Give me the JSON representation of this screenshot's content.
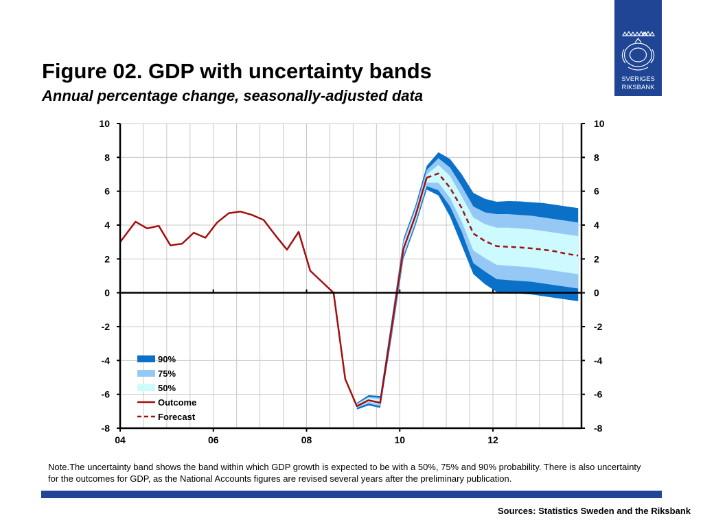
{
  "header": {
    "title": "Figure 02. GDP with uncertainty bands",
    "subtitle": "Annual percentage change, seasonally-adjusted data"
  },
  "logo": {
    "line1": "SVERIGES",
    "line2": "RIKSBANK",
    "background": "#1f4594",
    "icon": "crowned-crest-icon"
  },
  "note": "Note.The uncertainty band shows the band within which GDP growth is expected to be with a 50%, 75% and 90% probability. There is also uncertainty for the outcomes for GDP, as the National Accounts figures are revised several years after the preliminary publication.",
  "sources": "Sources: Statistics Sweden and the Riksbank",
  "chart_data": {
    "type": "area",
    "title": "Figure 02. GDP with uncertainty bands",
    "subtitle": "Annual percentage change, seasonally-adjusted data",
    "xlabel": "",
    "ylabel": "",
    "xlim": [
      2004,
      2013.9
    ],
    "ylim": [
      -8,
      10
    ],
    "x_ticks": [
      2004,
      2006,
      2008,
      2010,
      2012
    ],
    "x_tick_labels": [
      "04",
      "06",
      "08",
      "10",
      "12"
    ],
    "y_ticks": [
      -8,
      -6,
      -4,
      -2,
      0,
      2,
      4,
      6,
      8,
      10
    ],
    "y_tick_labels": [
      "-8",
      "-6",
      "-4",
      "-2",
      "0",
      "2",
      "4",
      "6",
      "8",
      "10"
    ],
    "secondary_y_axis": true,
    "grid": true,
    "legend_position": "bottom-left",
    "colors": {
      "band_90": "#0a70c8",
      "band_75": "#96c8f5",
      "band_50": "#ccfaff",
      "outcome": "#a30d0d",
      "forecast": "#a30d0d"
    },
    "series": [
      {
        "name": "Outcome",
        "style": "solid",
        "x": [
          2004.0,
          2004.33,
          2004.58,
          2004.83,
          2005.08,
          2005.33,
          2005.58,
          2005.83,
          2006.08,
          2006.33,
          2006.58,
          2006.83,
          2007.08,
          2007.33,
          2007.58,
          2007.83,
          2008.08,
          2008.33,
          2008.58,
          2008.83,
          2009.08,
          2009.33,
          2009.58,
          2009.83,
          2010.08,
          2010.33,
          2010.58
        ],
        "values": [
          3.0,
          4.2,
          3.8,
          3.95,
          2.8,
          2.9,
          3.55,
          3.25,
          4.15,
          4.7,
          4.8,
          4.6,
          4.3,
          3.4,
          2.55,
          3.6,
          1.3,
          0.65,
          0.0,
          -5.1,
          -6.7,
          -6.35,
          -6.5,
          -2.0,
          2.6,
          4.5,
          6.8
        ]
      },
      {
        "name": "Forecast",
        "style": "dashed",
        "x": [
          2010.58,
          2010.83,
          2011.08,
          2011.33,
          2011.58,
          2011.83,
          2012.08,
          2012.33,
          2012.58,
          2012.83,
          2013.08,
          2013.33,
          2013.58,
          2013.83
        ],
        "values": [
          6.8,
          7.05,
          6.2,
          5.0,
          3.5,
          3.05,
          2.75,
          2.72,
          2.68,
          2.62,
          2.55,
          2.45,
          2.3,
          2.2
        ]
      },
      {
        "name": "90%",
        "x": [
          2009.08,
          2009.33,
          2009.58,
          2009.83,
          2010.08,
          2010.33,
          2010.58,
          2010.83,
          2011.08,
          2011.33,
          2011.58,
          2011.83,
          2012.08,
          2012.33,
          2012.58,
          2012.83,
          2013.08,
          2013.33,
          2013.58,
          2013.83
        ],
        "upper": [
          -6.5,
          -6.05,
          -6.1,
          -1.5,
          3.2,
          5.1,
          7.5,
          8.3,
          7.9,
          7.0,
          5.9,
          5.55,
          5.38,
          5.42,
          5.4,
          5.35,
          5.3,
          5.2,
          5.1,
          5.0
        ],
        "lower": [
          -6.9,
          -6.65,
          -6.8,
          -2.6,
          2.0,
          3.9,
          6.1,
          5.75,
          4.5,
          2.8,
          1.1,
          0.5,
          0.05,
          -0.05,
          -0.05,
          -0.1,
          -0.2,
          -0.3,
          -0.4,
          -0.5
        ]
      },
      {
        "name": "75%",
        "x": [
          2009.08,
          2009.33,
          2009.58,
          2009.83,
          2010.08,
          2010.33,
          2010.58,
          2010.83,
          2011.08,
          2011.33,
          2011.58,
          2011.83,
          2012.08,
          2012.33,
          2012.58,
          2012.83,
          2013.08,
          2013.33,
          2013.58,
          2013.83
        ],
        "upper": [
          -6.55,
          -6.15,
          -6.2,
          -1.6,
          3.05,
          4.95,
          7.25,
          7.95,
          7.4,
          6.3,
          5.1,
          4.75,
          4.65,
          4.65,
          4.6,
          4.55,
          4.45,
          4.35,
          4.25,
          4.15
        ],
        "lower": [
          -6.8,
          -6.55,
          -6.7,
          -2.45,
          2.15,
          4.05,
          6.3,
          6.05,
          5.1,
          3.6,
          1.75,
          1.25,
          0.8,
          0.75,
          0.7,
          0.65,
          0.55,
          0.45,
          0.35,
          0.25
        ]
      },
      {
        "name": "50%",
        "x": [
          2009.08,
          2009.33,
          2009.58,
          2009.83,
          2010.08,
          2010.33,
          2010.58,
          2010.83,
          2011.08,
          2011.33,
          2011.58,
          2011.83,
          2012.08,
          2012.33,
          2012.58,
          2012.83,
          2013.08,
          2013.33,
          2013.58,
          2013.83
        ],
        "upper": [
          -6.6,
          -6.2,
          -6.3,
          -1.8,
          2.9,
          4.8,
          7.0,
          7.55,
          6.9,
          5.7,
          4.45,
          4.05,
          3.85,
          3.85,
          3.8,
          3.75,
          3.65,
          3.55,
          3.45,
          3.35
        ],
        "lower": [
          -6.75,
          -6.45,
          -6.6,
          -2.25,
          2.3,
          4.2,
          6.5,
          6.5,
          5.6,
          4.2,
          2.5,
          2.05,
          1.65,
          1.6,
          1.55,
          1.5,
          1.4,
          1.3,
          1.2,
          1.1
        ]
      }
    ],
    "legend": [
      {
        "label": "90%",
        "kind": "band",
        "color": "#0a70c8"
      },
      {
        "label": "75%",
        "kind": "band",
        "color": "#96c8f5"
      },
      {
        "label": "50%",
        "kind": "band",
        "color": "#ccfaff"
      },
      {
        "label": "Outcome",
        "kind": "line",
        "color": "#a30d0d"
      },
      {
        "label": "Forecast",
        "kind": "dashed",
        "color": "#a30d0d"
      }
    ]
  }
}
